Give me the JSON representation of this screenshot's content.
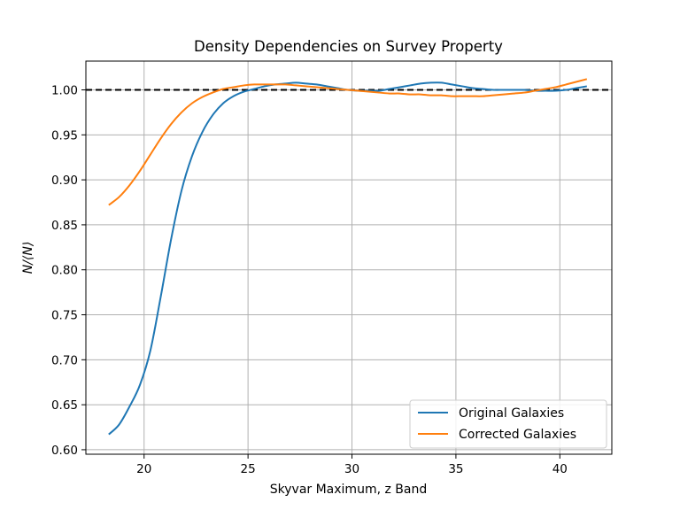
{
  "chart_data": {
    "type": "line",
    "title": "Density Dependencies on Survey Property",
    "xlabel": "Skyvar Maximum, z Band",
    "ylabel": "N/⟨N⟩",
    "xlim": [
      17.2,
      42.5
    ],
    "ylim": [
      0.595,
      1.032
    ],
    "xticks": [
      20,
      25,
      30,
      35,
      40
    ],
    "yticks": [
      0.6,
      0.65,
      0.7,
      0.75,
      0.8,
      0.85,
      0.9,
      0.95,
      1.0
    ],
    "grid": true,
    "reference_line": {
      "y": 1.0,
      "style": "dashed",
      "color": "#000000"
    },
    "legend": {
      "position": "lower-right"
    },
    "series": [
      {
        "name": "Original Galaxies",
        "color": "#1f77b4",
        "x": [
          18.3,
          18.8,
          19.3,
          19.8,
          20.3,
          20.8,
          21.3,
          21.8,
          22.3,
          22.8,
          23.3,
          23.8,
          24.3,
          24.8,
          25.3,
          25.8,
          26.3,
          26.8,
          27.3,
          27.8,
          28.3,
          28.8,
          29.3,
          29.8,
          30.3,
          30.8,
          31.3,
          31.8,
          32.3,
          32.8,
          33.3,
          33.8,
          34.3,
          34.8,
          35.3,
          35.8,
          36.3,
          36.8,
          37.3,
          37.8,
          38.3,
          38.8,
          39.3,
          39.8,
          40.3,
          40.8,
          41.3
        ],
        "y": [
          0.617,
          0.628,
          0.648,
          0.672,
          0.71,
          0.77,
          0.834,
          0.888,
          0.926,
          0.953,
          0.972,
          0.985,
          0.993,
          0.998,
          1.001,
          1.004,
          1.006,
          1.007,
          1.008,
          1.007,
          1.006,
          1.004,
          1.002,
          1.0,
          0.999,
          0.999,
          0.999,
          1.001,
          1.003,
          1.005,
          1.007,
          1.008,
          1.008,
          1.006,
          1.004,
          1.002,
          1.001,
          1.0,
          1.0,
          1.0,
          1.0,
          0.999,
          0.999,
          0.999,
          1.0,
          1.002,
          1.004
        ]
      },
      {
        "name": "Corrected Galaxies",
        "color": "#ff7f0e",
        "x": [
          18.3,
          18.8,
          19.3,
          19.8,
          20.3,
          20.8,
          21.3,
          21.8,
          22.3,
          22.8,
          23.3,
          23.8,
          24.3,
          24.8,
          25.3,
          25.8,
          26.3,
          26.8,
          27.3,
          27.8,
          28.3,
          28.8,
          29.3,
          29.8,
          30.3,
          30.8,
          31.3,
          31.8,
          32.3,
          32.8,
          33.3,
          33.8,
          34.3,
          34.8,
          35.3,
          35.8,
          36.3,
          36.8,
          37.3,
          37.8,
          38.3,
          38.8,
          39.3,
          39.8,
          40.3,
          40.8,
          41.3
        ],
        "y": [
          0.872,
          0.881,
          0.894,
          0.91,
          0.928,
          0.946,
          0.962,
          0.975,
          0.985,
          0.992,
          0.997,
          1.001,
          1.003,
          1.005,
          1.006,
          1.006,
          1.006,
          1.006,
          1.005,
          1.004,
          1.003,
          1.002,
          1.001,
          1.0,
          0.999,
          0.998,
          0.997,
          0.996,
          0.996,
          0.995,
          0.995,
          0.994,
          0.994,
          0.993,
          0.993,
          0.993,
          0.993,
          0.994,
          0.995,
          0.996,
          0.997,
          0.999,
          1.001,
          1.003,
          1.006,
          1.009,
          1.012
        ]
      }
    ]
  }
}
